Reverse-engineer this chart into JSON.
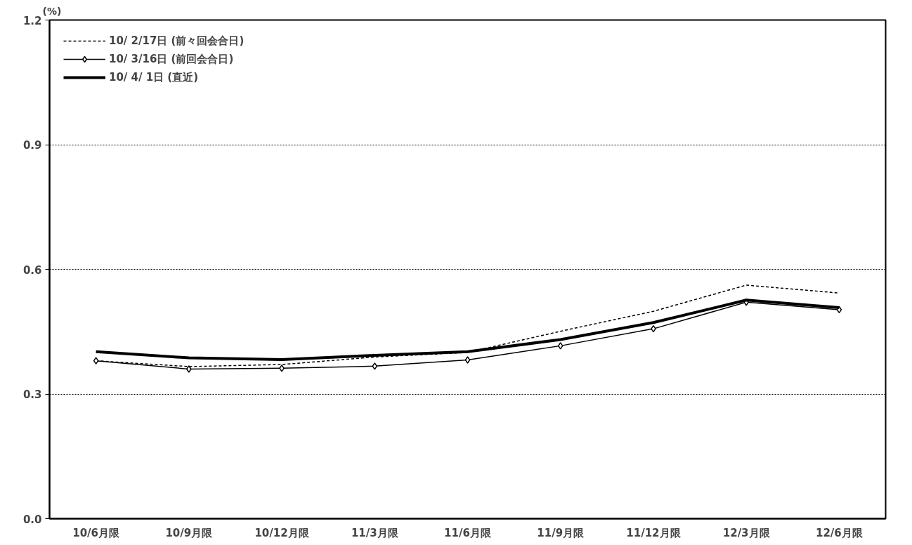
{
  "chart_data": {
    "type": "line",
    "ylabel": "(%)",
    "categories": [
      "10/6月限",
      "10/9月限",
      "10/12月限",
      "11/3月限",
      "11/6月限",
      "11/9月限",
      "11/12月限",
      "12/3月限",
      "12/6月限"
    ],
    "ylim": [
      0,
      1.2
    ],
    "yticks": [
      {
        "value": 0,
        "label": "0.0"
      },
      {
        "value": 0.3,
        "label": "0.3"
      },
      {
        "value": 0.6,
        "label": "0.6"
      },
      {
        "value": 0.9,
        "label": "0.9"
      },
      {
        "value": 1.2,
        "label": "1.2"
      }
    ],
    "grid": "y",
    "legend": "top left",
    "series": [
      {
        "name": "10/ 2/17日 (前々回会合日)",
        "color": "#000000",
        "line_style": "dashed",
        "marker": "none",
        "values": [
          0.38,
          0.366,
          0.371,
          0.389,
          0.4,
          0.451,
          0.499,
          0.562,
          0.543
        ]
      },
      {
        "name": "10/ 3/16日 (前回会合日)",
        "color": "#000000",
        "line_style": "solid",
        "marker": "diamond",
        "values": [
          0.38,
          0.36,
          0.362,
          0.367,
          0.382,
          0.416,
          0.457,
          0.521,
          0.503
        ]
      },
      {
        "name": "10/ 4/ 1日 (直近)",
        "color": "#000000",
        "line_style": "solid",
        "marker": "none",
        "values": [
          0.402,
          0.387,
          0.383,
          0.393,
          0.402,
          0.431,
          0.472,
          0.526,
          0.508
        ]
      }
    ]
  }
}
